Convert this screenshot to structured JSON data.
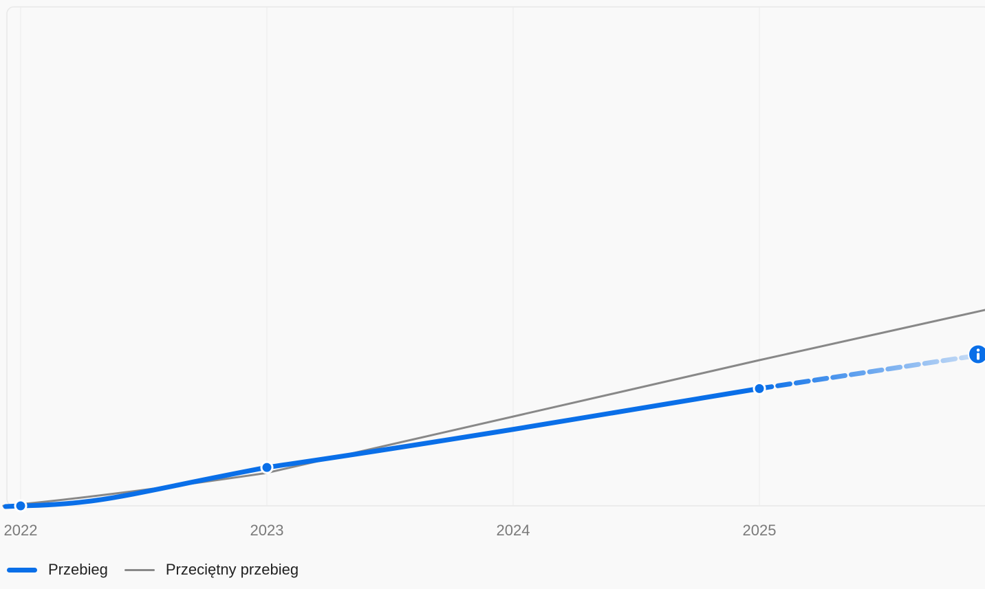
{
  "colors": {
    "series_main": "#0a6fe8",
    "series_average": "#888888",
    "grid": "#ececec",
    "plot_border": "#e8e8e8",
    "plot_background": "#f9f9f9",
    "tick_text": "#7a7a7a",
    "info_badge": "#0a6fe8"
  },
  "legend": {
    "items": [
      {
        "label": "Przebieg"
      },
      {
        "label": "Przeciętny przebieg"
      }
    ]
  },
  "chart_data": {
    "type": "line",
    "title": "",
    "xlabel": "",
    "ylabel": "",
    "x_ticks": [
      "2022",
      "2023",
      "2024",
      "2025"
    ],
    "grid": "vertical",
    "legend_position": "bottom-left",
    "xlim": [
      2021.93,
      2025.92
    ],
    "ylim": [
      0,
      100
    ],
    "series": [
      {
        "name": "Przebieg",
        "style": "solid",
        "points": [
          [
            2022.0,
            0
          ],
          [
            2023.0,
            7.7
          ],
          [
            2025.0,
            23.5
          ]
        ],
        "projection": {
          "style": "dashed-fading",
          "points": [
            [
              2025.0,
              23.5
            ],
            [
              2025.88,
              30.1
            ]
          ]
        },
        "end_marker_icon": "info-icon"
      },
      {
        "name": "Przeciętny przebieg",
        "style": "solid",
        "points": [
          [
            2021.93,
            0
          ],
          [
            2023.0,
            6.6
          ],
          [
            2025.0,
            29.2
          ],
          [
            2025.92,
            39.3
          ]
        ]
      }
    ]
  }
}
